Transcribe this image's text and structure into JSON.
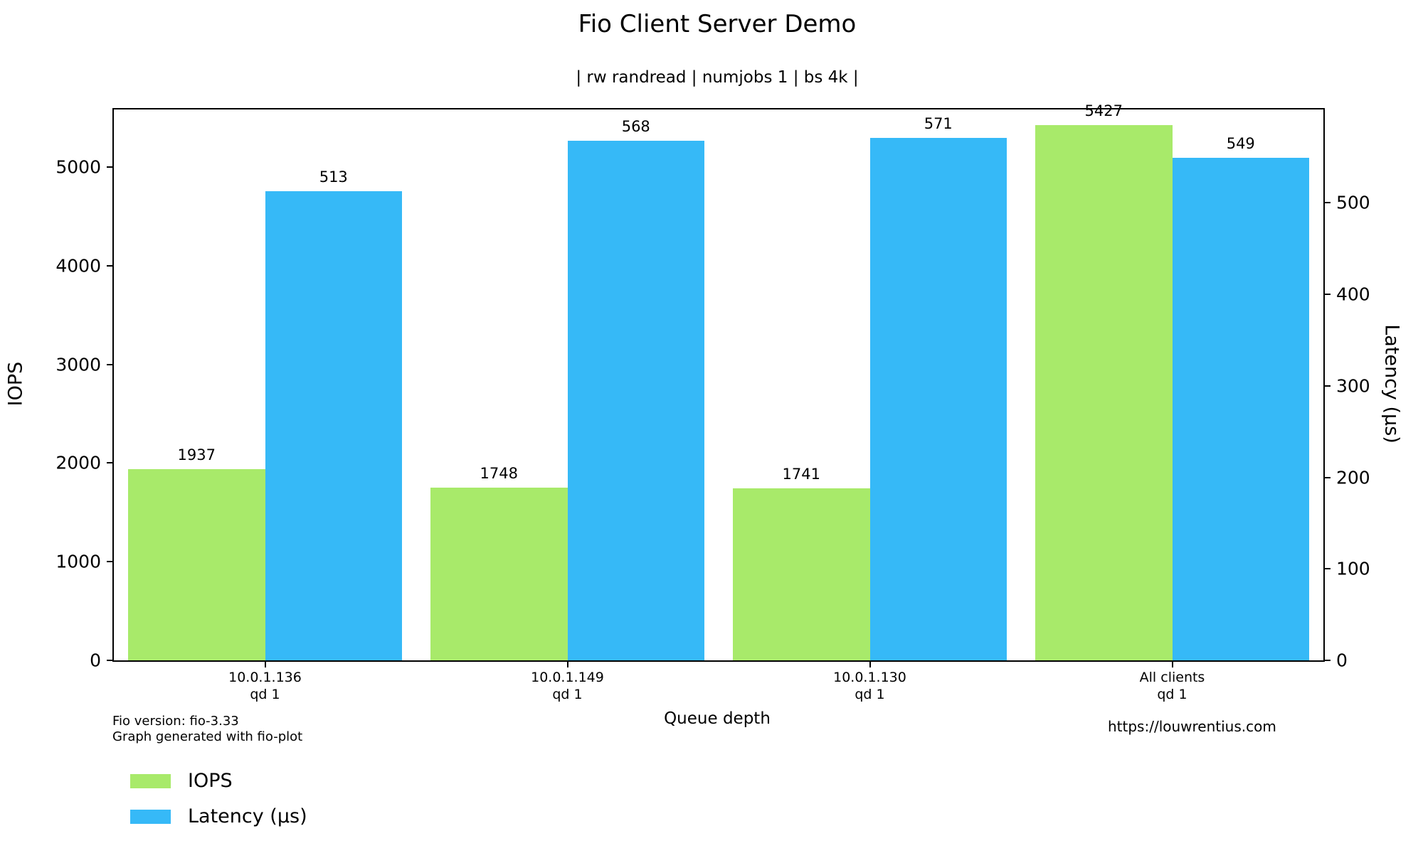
{
  "title": "Fio Client Server Demo",
  "subtitle": "| rw randread | numjobs 1 | bs 4k |",
  "chart_data": {
    "type": "bar",
    "title": "Fio Client Server Demo",
    "subtitle": "| rw randread | numjobs 1 | bs 4k |",
    "xlabel": "Queue depth",
    "categories": [
      {
        "line1": "10.0.1.136",
        "line2": "qd 1"
      },
      {
        "line1": "10.0.1.149",
        "line2": "qd 1"
      },
      {
        "line1": "10.0.1.130",
        "line2": "qd 1"
      },
      {
        "line1": "All clients",
        "line2": "qd 1"
      }
    ],
    "series": [
      {
        "name": "IOPS",
        "axis": "left",
        "color": "#a8ea6a",
        "values": [
          1937,
          1748,
          1741,
          5427
        ]
      },
      {
        "name": "Latency (µs)",
        "axis": "right",
        "color": "#36b9f7",
        "values": [
          513,
          568,
          571,
          549
        ]
      }
    ],
    "left_axis": {
      "label": "IOPS",
      "ticks": [
        0,
        1000,
        2000,
        3000,
        4000,
        5000
      ],
      "max": 5583
    },
    "right_axis": {
      "label": "Latency (µs)",
      "ticks": [
        0,
        100,
        200,
        300,
        400,
        500
      ],
      "max": 602
    },
    "grid": false,
    "bar_value_labels": true,
    "legend_position": "bottom-left"
  },
  "footer": {
    "left_line1": "Fio version: fio-3.33",
    "left_line2": "Graph generated with fio-plot",
    "right": "https://louwrentius.com"
  },
  "legend": [
    {
      "label": "IOPS",
      "color": "#a8ea6a"
    },
    {
      "label": "Latency (µs)",
      "color": "#36b9f7"
    }
  ]
}
